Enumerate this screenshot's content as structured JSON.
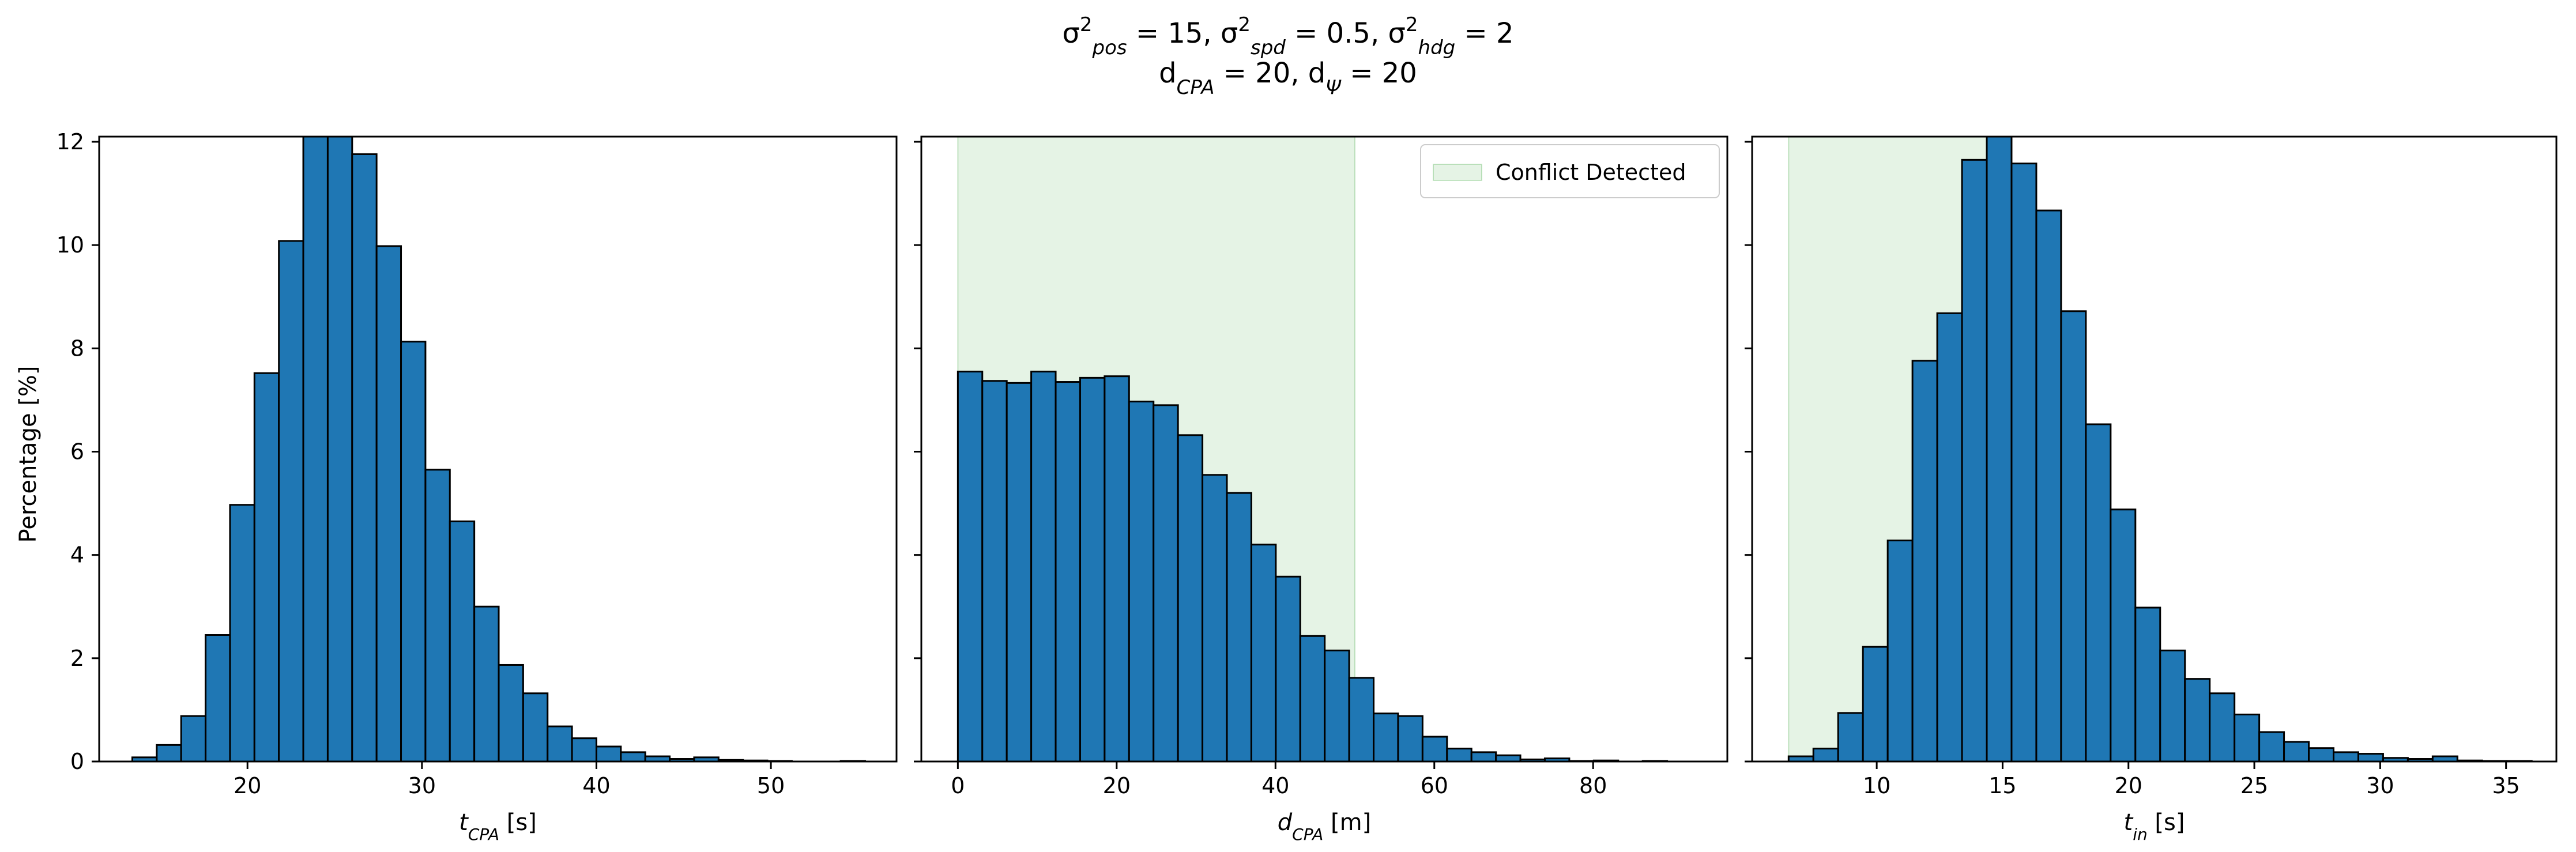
{
  "figure": {
    "title_line1_parts": [
      {
        "t": "σ"
      },
      {
        "sup": "2"
      },
      {
        "sub": "pos"
      },
      {
        "t": " = 15, σ"
      },
      {
        "sup": "2"
      },
      {
        "sub": "spd"
      },
      {
        "t": " = 0.5, σ"
      },
      {
        "sup": "2"
      },
      {
        "sub": "hdg"
      },
      {
        "t": " = 2"
      }
    ],
    "title_line2_parts": [
      {
        "t": "d"
      },
      {
        "sub": "CPA"
      },
      {
        "t": " = 20, d"
      },
      {
        "sub": "Ψ"
      },
      {
        "t": " = 20"
      }
    ],
    "shared_ylabel": "Percentage [%]",
    "colors": {
      "bar_fill": "#1f77b4",
      "bar_edge": "#000000",
      "conflict_region": "#2ca02c"
    }
  },
  "chart_data": [
    {
      "type": "bar",
      "xlabel_parts": [
        {
          "t": "t"
        },
        {
          "sub": "CPA"
        },
        {
          "t": " [s]"
        }
      ],
      "ylabel": "Percentage [%]",
      "xlim": [
        11.5,
        57.2
      ],
      "ylim": [
        0,
        12.1
      ],
      "xticks": [
        20,
        30,
        40,
        50
      ],
      "yticks": [
        0,
        2,
        4,
        6,
        8,
        10,
        12
      ],
      "bin_start": 13.4,
      "bin_width": 1.4,
      "values": [
        0.08,
        0.32,
        0.88,
        2.45,
        4.97,
        7.52,
        10.08,
        12.2,
        12.2,
        11.76,
        9.98,
        8.13,
        5.65,
        4.65,
        3.0,
        1.87,
        1.32,
        0.68,
        0.45,
        0.29,
        0.18,
        0.1,
        0.05,
        0.08,
        0.03,
        0.02,
        0.01,
        0.0,
        0.0,
        0.01
      ],
      "legend": null
    },
    {
      "type": "bar",
      "xlabel_parts": [
        {
          "t": "d"
        },
        {
          "sub": "CPA"
        },
        {
          "t": " [m]"
        }
      ],
      "xlim": [
        -4.6,
        96.9
      ],
      "ylim": [
        0,
        12.1
      ],
      "xticks": [
        0,
        20,
        40,
        60,
        80
      ],
      "yticks": [
        0,
        2,
        4,
        6,
        8,
        10,
        12
      ],
      "bin_start": 0.0,
      "bin_width": 3.08,
      "values": [
        7.55,
        7.37,
        7.33,
        7.55,
        7.35,
        7.43,
        7.46,
        6.97,
        6.9,
        6.32,
        5.55,
        5.2,
        4.2,
        3.58,
        2.43,
        2.15,
        1.62,
        0.93,
        0.88,
        0.48,
        0.25,
        0.18,
        0.12,
        0.04,
        0.06,
        0.01,
        0.02,
        0.0,
        0.01,
        0.0
      ],
      "shaded_region": {
        "x0": 0,
        "x1": 50
      },
      "legend": {
        "label": "Conflict Detected",
        "location": "upper right"
      }
    },
    {
      "type": "bar",
      "xlabel_parts": [
        {
          "t": "t"
        },
        {
          "sub": "in"
        },
        {
          "t": " [s]"
        }
      ],
      "xlim": [
        5.05,
        37.0
      ],
      "ylim": [
        0,
        12.1
      ],
      "xticks": [
        10,
        15,
        20,
        25,
        30,
        35
      ],
      "yticks": [
        0,
        2,
        4,
        6,
        8,
        10,
        12
      ],
      "bin_start": 6.5,
      "bin_width": 0.984,
      "values": [
        0.1,
        0.25,
        0.94,
        2.22,
        4.28,
        7.76,
        8.68,
        11.65,
        12.1,
        11.58,
        10.67,
        8.72,
        6.53,
        4.88,
        2.98,
        2.15,
        1.6,
        1.32,
        0.91,
        0.57,
        0.38,
        0.26,
        0.18,
        0.15,
        0.07,
        0.05,
        0.1,
        0.02,
        0.01,
        0.01
      ],
      "shaded_region": {
        "x0": 6.5,
        "x1": 14.6
      },
      "legend": null
    }
  ]
}
